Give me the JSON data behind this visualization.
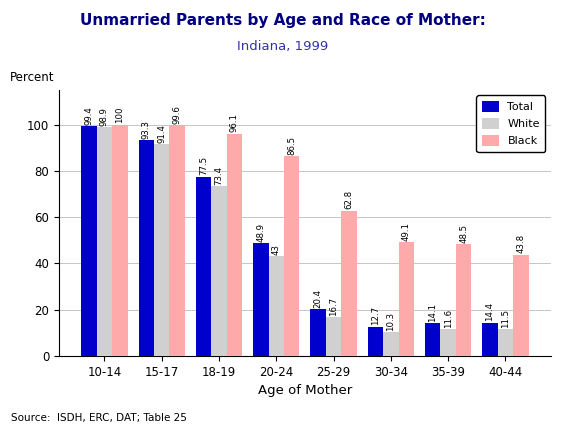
{
  "title_line1": "Unmarried Parents by Age and Race of Mother:",
  "title_line2": "Indiana, 1999",
  "xlabel": "Age of Mother",
  "ylabel_label": "Percent",
  "source": "Source:  ISDH, ERC, DAT; Table 25",
  "categories": [
    "10-14",
    "15-17",
    "18-19",
    "20-24",
    "25-29",
    "30-34",
    "35-39",
    "40-44"
  ],
  "total": [
    99.4,
    93.3,
    77.5,
    48.9,
    20.4,
    12.7,
    14.1,
    14.4
  ],
  "white": [
    98.9,
    91.4,
    73.4,
    43.0,
    16.7,
    10.3,
    11.6,
    11.5
  ],
  "black": [
    100.0,
    99.6,
    96.1,
    86.5,
    62.8,
    49.1,
    48.5,
    43.8
  ],
  "label_total": [
    "99.4",
    "93.3",
    "77.5",
    "48.9",
    "20.4",
    "12.7",
    "14.1",
    "14.4"
  ],
  "label_white": [
    "98.9",
    "91.4",
    "73.4",
    "43",
    "16.7",
    "10.3",
    "11.6",
    "11.5"
  ],
  "label_black": [
    "100",
    "99.6",
    "96.1",
    "86.5",
    "62.8",
    "49.1",
    "48.5",
    "43.8"
  ],
  "color_total": "#0000cc",
  "color_white": "#d0d0d0",
  "color_black": "#ffaaaa",
  "ylim": [
    0,
    115
  ],
  "yticks": [
    0,
    20,
    40,
    60,
    80,
    100
  ],
  "bar_width": 0.27,
  "legend_labels": [
    "Total",
    "White",
    "Black"
  ],
  "title_color": "#000080",
  "subtitle_color": "#3333aa",
  "background_color": "#ffffff",
  "plot_bg_color": "#ffffff"
}
